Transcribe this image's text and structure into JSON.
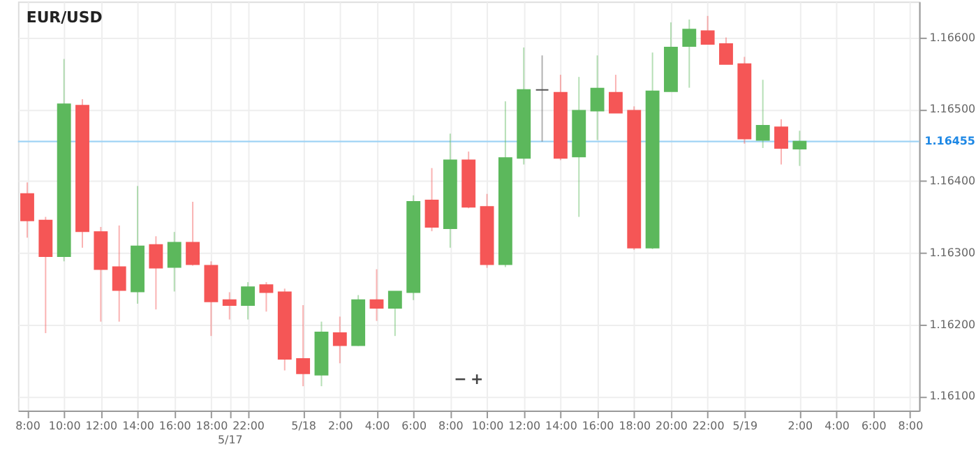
{
  "chart_data": {
    "type": "candlestick",
    "title": "EUR/USD",
    "categories": [
      "8:00",
      null,
      "10:00",
      null,
      "12:00",
      null,
      "14:00",
      null,
      "16:00",
      null,
      "18:00",
      "5/17",
      "22:00",
      null,
      null,
      "5/18",
      null,
      "2:00",
      null,
      "4:00",
      null,
      "6:00",
      null,
      "8:00",
      null,
      "10:00",
      null,
      "12:00",
      null,
      "14:00",
      null,
      "16:00",
      null,
      "18:00",
      null,
      "20:00",
      null,
      "22:00",
      null,
      "5/19",
      null,
      null,
      "2:00",
      null,
      "4:00",
      null,
      "6:00",
      null,
      "8:00"
    ],
    "ohlc": [
      [
        1.16382,
        1.16398,
        1.16321,
        1.16345
      ],
      [
        1.16345,
        1.1635,
        1.16188,
        1.16295
      ],
      [
        1.16295,
        1.1657,
        1.16288,
        1.16507
      ],
      [
        1.16505,
        1.16514,
        1.16307,
        1.1633
      ],
      [
        1.16329,
        1.16336,
        1.16204,
        1.16277
      ],
      [
        1.1628,
        1.16338,
        1.16204,
        1.16248
      ],
      [
        1.16246,
        1.16393,
        1.16229,
        1.16309
      ],
      [
        1.16311,
        1.16323,
        1.16221,
        1.16279
      ],
      [
        1.1628,
        1.16329,
        1.16246,
        1.16314
      ],
      [
        1.16314,
        1.16371,
        1.16282,
        1.16284
      ],
      [
        1.16282,
        1.16288,
        1.16184,
        1.16232
      ],
      [
        1.16234,
        1.16245,
        1.16207,
        1.16227
      ],
      [
        1.16227,
        1.16259,
        1.16207,
        1.16252
      ],
      [
        1.16255,
        1.16259,
        1.16218,
        1.16245
      ],
      [
        1.16245,
        1.1625,
        1.16136,
        1.16152
      ],
      [
        1.16152,
        1.16227,
        1.16114,
        1.16132
      ],
      [
        1.1613,
        1.16204,
        1.16114,
        1.16189
      ],
      [
        1.16188,
        1.16211,
        1.16146,
        1.16171
      ],
      [
        1.16171,
        1.16241,
        1.1617,
        1.16234
      ],
      [
        1.16234,
        1.16277,
        1.16205,
        1.16223
      ],
      [
        1.16223,
        1.16246,
        1.16184,
        1.16246
      ],
      [
        1.16245,
        1.1638,
        1.16234,
        1.16371
      ],
      [
        1.16373,
        1.16418,
        1.1633,
        1.16336
      ],
      [
        1.16334,
        1.16466,
        1.16307,
        1.16429
      ],
      [
        1.16429,
        1.16441,
        1.16362,
        1.16364
      ],
      [
        1.16364,
        1.16382,
        1.16279,
        1.16284
      ],
      [
        1.16284,
        1.16511,
        1.1628,
        1.16432
      ],
      [
        1.16432,
        1.16586,
        1.16423,
        1.16527
      ],
      [
        1.16527,
        1.16575,
        1.16455,
        1.16527
      ],
      [
        1.16523,
        1.16548,
        1.16429,
        1.16432
      ],
      [
        1.16434,
        1.16545,
        1.1635,
        1.16498
      ],
      [
        1.16498,
        1.16575,
        1.16457,
        1.16529
      ],
      [
        1.16523,
        1.16548,
        1.16495,
        1.16495
      ],
      [
        1.16498,
        1.16504,
        1.16304,
        1.16307
      ],
      [
        1.16307,
        1.16579,
        1.16305,
        1.16525
      ],
      [
        1.16525,
        1.16621,
        1.16525,
        1.16586
      ],
      [
        1.16588,
        1.16625,
        1.1653,
        1.16611
      ],
      [
        1.16609,
        1.1663,
        1.16591,
        1.16591
      ],
      [
        1.16591,
        1.166,
        1.16563,
        1.16563
      ],
      [
        1.16563,
        1.16573,
        1.16452,
        1.16459
      ],
      [
        1.16457,
        1.16541,
        1.16446,
        1.16477
      ],
      [
        1.16475,
        1.16486,
        1.16423,
        1.16446
      ],
      [
        1.16445,
        1.1647,
        1.16421,
        1.16455
      ],
      null,
      null,
      null,
      null,
      null,
      null
    ],
    "colors": [
      "#f55656",
      "#f55656",
      "#5cb85c",
      "#f55656",
      "#f55656",
      "#f55656",
      "#5cb85c",
      "#f55656",
      "#5cb85c",
      "#f55656",
      "#f55656",
      "#f55656",
      "#5cb85c",
      "#f55656",
      "#f55656",
      "#f55656",
      "#5cb85c",
      "#f55656",
      "#5cb85c",
      "#f55656",
      "#5cb85c",
      "#5cb85c",
      "#f55656",
      "#5cb85c",
      "#f55656",
      "#f55656",
      "#5cb85c",
      "#5cb85c",
      "#555555",
      "#f55656",
      "#5cb85c",
      "#5cb85c",
      "#f55656",
      "#f55656",
      "#5cb85c",
      "#5cb85c",
      "#5cb85c",
      "#f55656",
      "#f55656",
      "#f55656",
      "#5cb85c",
      "#f55656",
      "#5cb85c",
      null,
      null,
      null,
      null,
      null,
      null
    ],
    "ylim": [
      1.1608,
      1.1665
    ],
    "yticks": [
      {
        "value": 1.161,
        "label": "1.16100"
      },
      {
        "value": 1.162,
        "label": "1.16200"
      },
      {
        "value": 1.163,
        "label": "1.16300"
      },
      {
        "value": 1.164,
        "label": "1.16400"
      },
      {
        "value": 1.165,
        "label": "1.16500"
      },
      {
        "value": 1.166,
        "label": "1.16600"
      }
    ],
    "ref_lines": [
      {
        "axis": "y",
        "value": 1.16455,
        "label": "1.16455",
        "color": "#9fd3f5"
      }
    ],
    "annotations": [
      "−",
      "+"
    ],
    "grid": true
  }
}
